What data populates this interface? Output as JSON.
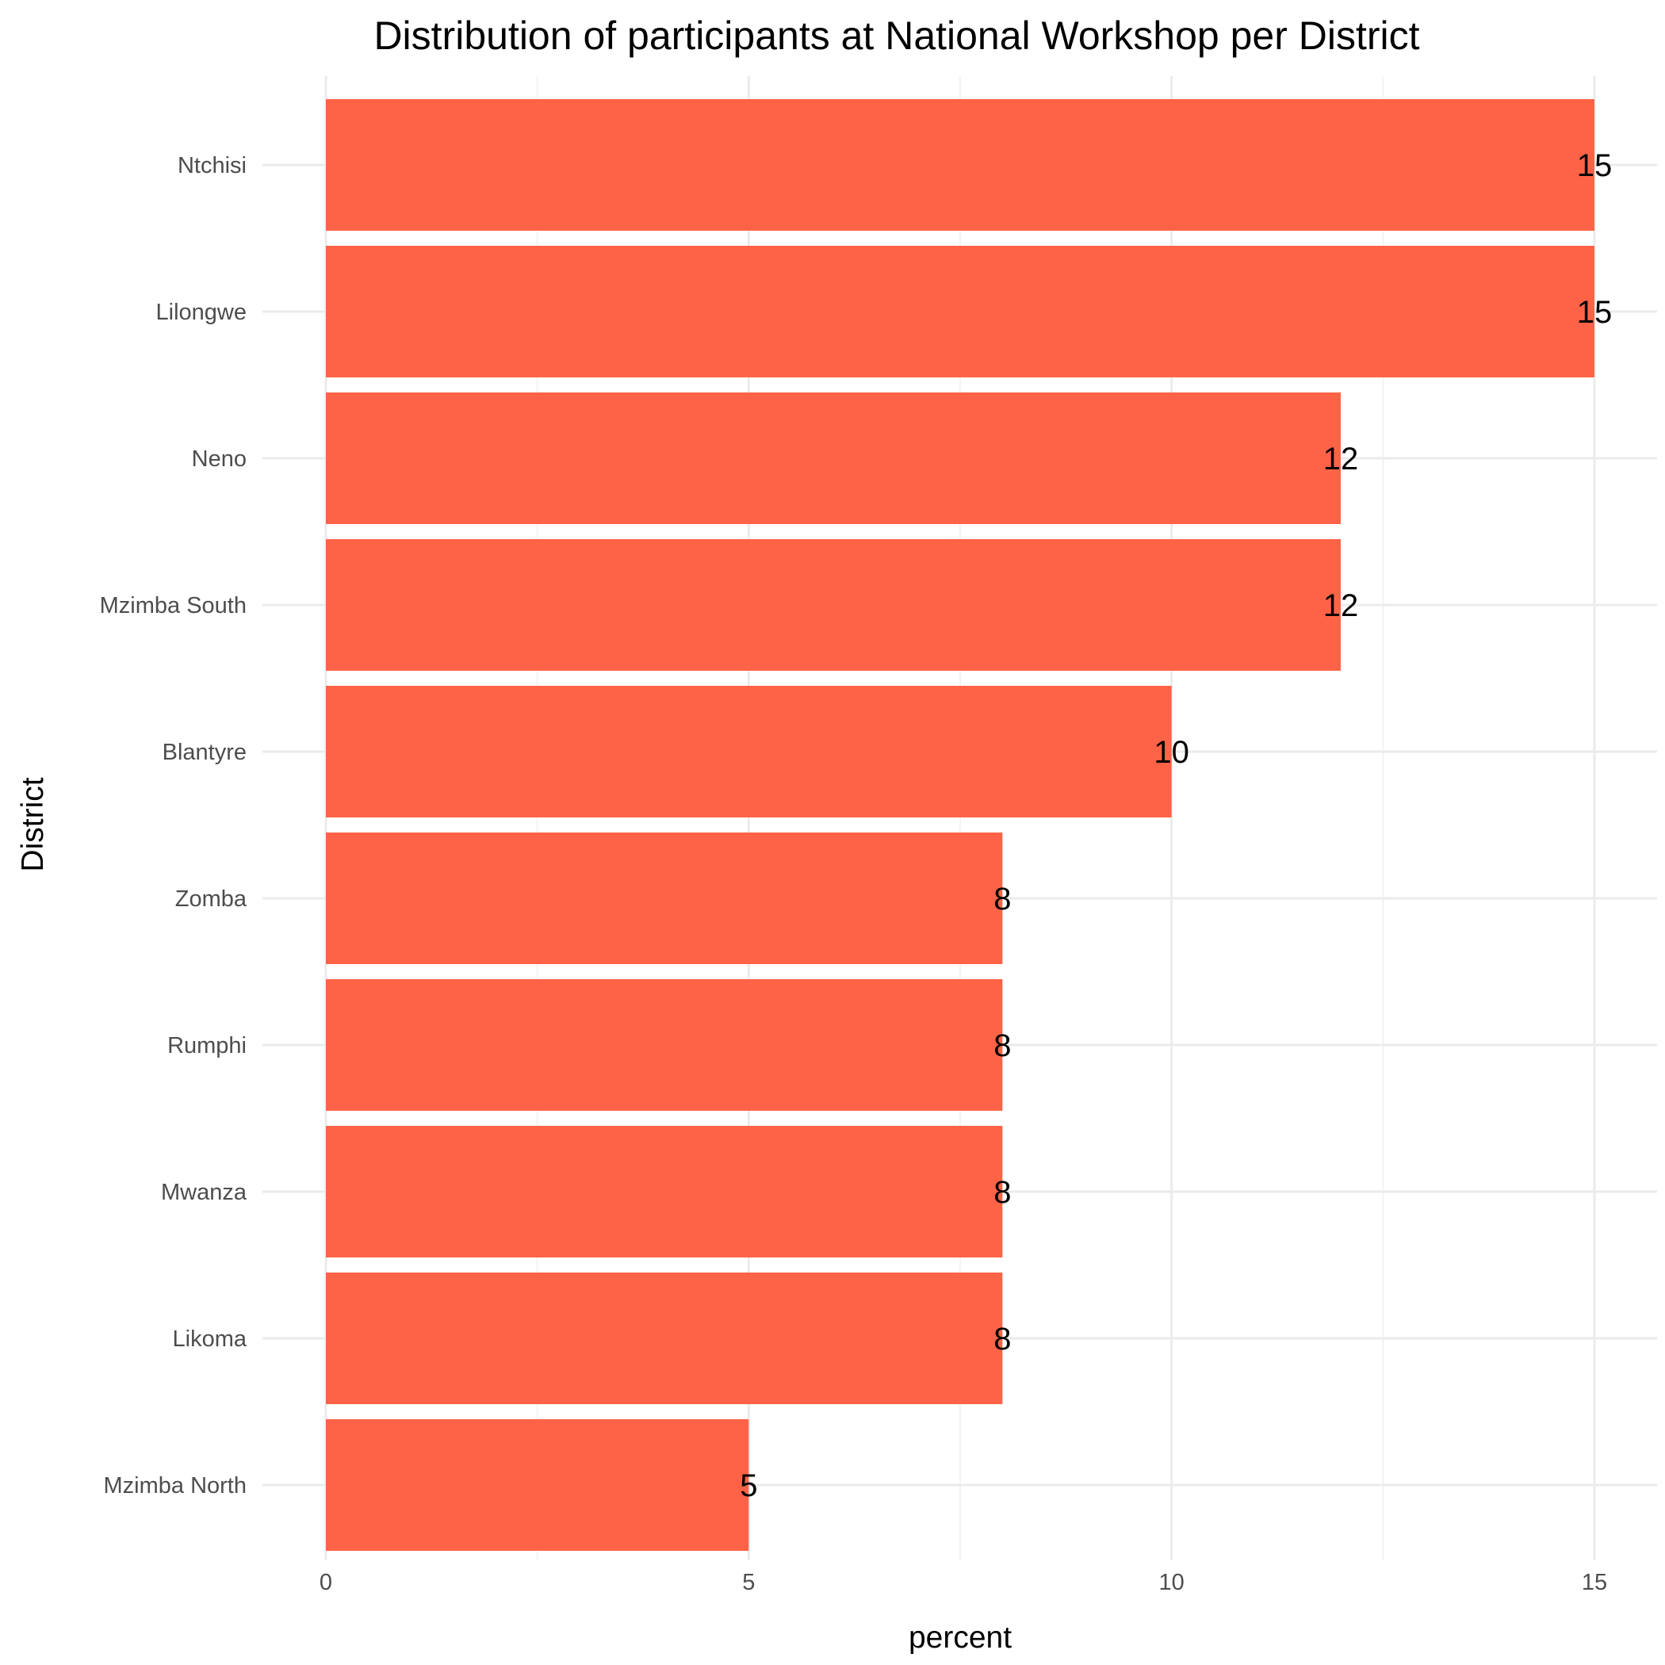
{
  "chart_data": {
    "type": "bar",
    "orientation": "horizontal",
    "title": "Distribution of participants at National Workshop per District",
    "xlabel": "percent",
    "ylabel": "District",
    "categories": [
      "Ntchisi",
      "Lilongwe",
      "Neno",
      "Mzimba South",
      "Blantyre",
      "Zomba",
      "Rumphi",
      "Mwanza",
      "Likoma",
      "Mzimba North"
    ],
    "values": [
      15,
      15,
      12,
      12,
      10,
      8,
      8,
      8,
      8,
      5
    ],
    "data_labels": [
      "15",
      "15",
      "12",
      "12",
      "10",
      "8",
      "8",
      "8",
      "8",
      "5"
    ],
    "xlim": [
      0,
      15
    ],
    "x_ticks": [
      0,
      5,
      10,
      15
    ],
    "x_tick_labels": [
      "0",
      "5",
      "10",
      "15"
    ],
    "grid": true,
    "legend": "none",
    "bar_color": "#ff6347"
  }
}
